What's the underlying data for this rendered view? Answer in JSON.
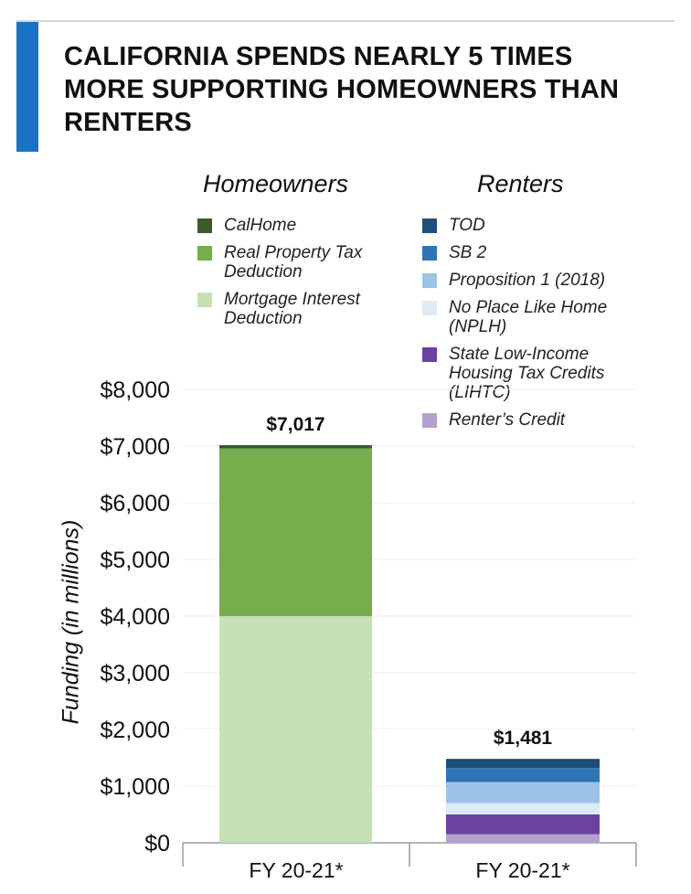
{
  "title": "CALIFORNIA SPENDS NEARLY 5 TIMES MORE SUPPORTING HOMEOWNERS THAN RENTERS",
  "groups": {
    "homeowners": "Homeowners",
    "renters": "Renters"
  },
  "legend": {
    "homeowners": [
      {
        "label": "CalHome",
        "color": "#3b5a2e"
      },
      {
        "label": "Real Property Tax Deduction",
        "color": "#76ad4d"
      },
      {
        "label": "Mortgage Interest Deduction",
        "color": "#c7e0b4"
      }
    ],
    "renters": [
      {
        "label": "TOD",
        "color": "#1f4e79"
      },
      {
        "label": "SB 2",
        "color": "#2e75b6"
      },
      {
        "label": "Proposition 1 (2018)",
        "color": "#9dc3e6"
      },
      {
        "label": "No Place Like Home (NPLH)",
        "color": "#deebf7"
      },
      {
        "label": "State Low-Income Housing Tax Credits (LIHTC)",
        "color": "#6b42a0"
      },
      {
        "label": "Renter’s Credit",
        "color": "#b4a0cf"
      }
    ]
  },
  "chart_data": {
    "type": "bar",
    "stacked": true,
    "categories": [
      "FY 20-21*",
      "FY 20-21*"
    ],
    "ylabel": "Funding (in millions)",
    "ylim": [
      0,
      8000
    ],
    "yticks": [
      "$0",
      "$1,000",
      "$2,000",
      "$3,000",
      "$4,000",
      "$5,000",
      "$6,000",
      "$7,000",
      "$8,000"
    ],
    "grid": true,
    "bars": [
      {
        "group": "Homeowners",
        "category": "FY 20-21*",
        "total_label": "$7,017",
        "segments": [
          {
            "name": "Mortgage Interest Deduction",
            "value": 4000,
            "color": "#c7e0b4"
          },
          {
            "name": "Real Property Tax Deduction",
            "value": 2960,
            "color": "#76ad4d"
          },
          {
            "name": "CalHome",
            "value": 57,
            "color": "#3b5a2e"
          }
        ]
      },
      {
        "group": "Renters",
        "category": "FY 20-21*",
        "total_label": "$1,481",
        "segments": [
          {
            "name": "Renter’s Credit",
            "value": 150,
            "color": "#b4a0cf"
          },
          {
            "name": "State Low-Income Housing Tax Credits (LIHTC)",
            "value": 350,
            "color": "#6b42a0"
          },
          {
            "name": "No Place Like Home (NPLH)",
            "value": 200,
            "color": "#deebf7"
          },
          {
            "name": "Proposition 1 (2018)",
            "value": 370,
            "color": "#9dc3e6"
          },
          {
            "name": "SB 2",
            "value": 250,
            "color": "#2e75b6"
          },
          {
            "name": "TOD",
            "value": 161,
            "color": "#1f4e79"
          }
        ]
      }
    ]
  }
}
